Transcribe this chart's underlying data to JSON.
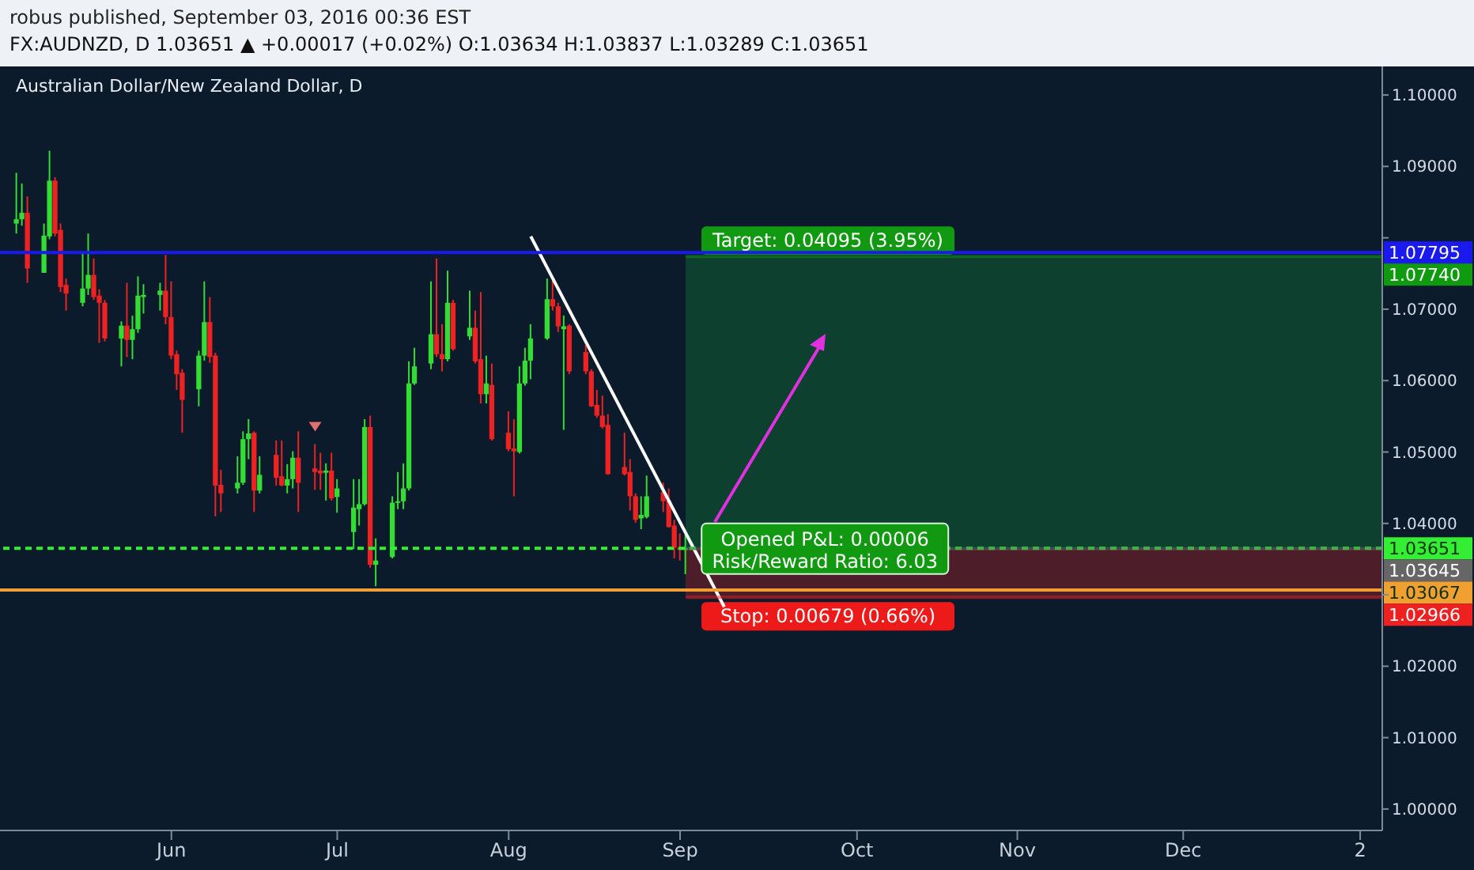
{
  "chart_data": {
    "type": "candlestick",
    "title": "Australian Dollar/New Zealand Dollar, D",
    "subtitle": "FX:AUDNZD, D 1.03651 ▲ +0.00017 (+0.02%) O:1.03634 H:1.03837 L:1.03289 C:1.03651",
    "annotations": [
      "robus published, September 03, 2016 00:36 EST",
      "Opened P&L: 0.00006",
      "Risk/Reward Ratio: 6.03"
    ],
    "x": [
      "2016-05-04",
      "2016-05-05",
      "2016-05-06",
      "2016-05-09",
      "2016-05-10",
      "2016-05-11",
      "2016-05-12",
      "2016-05-13",
      "2016-05-16",
      "2016-05-17",
      "2016-05-18",
      "2016-05-19",
      "2016-05-20",
      "2016-05-23",
      "2016-05-24",
      "2016-05-25",
      "2016-05-26",
      "2016-05-27",
      "2016-05-30",
      "2016-05-31",
      "2016-06-01",
      "2016-06-02",
      "2016-06-03",
      "2016-06-06",
      "2016-06-07",
      "2016-06-08",
      "2016-06-09",
      "2016-06-10",
      "2016-06-13",
      "2016-06-14",
      "2016-06-15",
      "2016-06-16",
      "2016-06-17",
      "2016-06-20",
      "2016-06-21",
      "2016-06-22",
      "2016-06-23",
      "2016-06-24",
      "2016-06-27",
      "2016-06-28",
      "2016-06-29",
      "2016-06-30",
      "2016-07-01",
      "2016-07-04",
      "2016-07-05",
      "2016-07-06",
      "2016-07-07",
      "2016-07-08",
      "2016-07-11",
      "2016-07-12",
      "2016-07-13",
      "2016-07-14",
      "2016-07-15",
      "2016-07-18",
      "2016-07-19",
      "2016-07-20",
      "2016-07-21",
      "2016-07-22",
      "2016-07-25",
      "2016-07-26",
      "2016-07-27",
      "2016-07-28",
      "2016-07-29",
      "2016-08-01",
      "2016-08-02",
      "2016-08-03",
      "2016-08-04",
      "2016-08-05",
      "2016-08-08",
      "2016-08-09",
      "2016-08-10",
      "2016-08-11",
      "2016-08-12",
      "2016-08-15",
      "2016-08-16",
      "2016-08-17",
      "2016-08-18",
      "2016-08-19",
      "2016-08-22",
      "2016-08-23",
      "2016-08-24",
      "2016-08-25",
      "2016-08-26",
      "2016-08-29",
      "2016-08-30",
      "2016-08-31",
      "2016-09-01",
      "2016-09-02"
    ],
    "ohlc": [
      [
        1.082,
        1.0891,
        1.0806,
        1.0826
      ],
      [
        1.0826,
        1.0876,
        1.0817,
        1.0835
      ],
      [
        1.0835,
        1.0858,
        1.0737,
        1.0757
      ],
      [
        1.0751,
        1.082,
        1.0751,
        1.0803
      ],
      [
        1.0802,
        1.0922,
        1.0798,
        1.088
      ],
      [
        1.088,
        1.0885,
        1.0802,
        1.0806
      ],
      [
        1.0811,
        1.082,
        1.0724,
        1.0731
      ],
      [
        1.0734,
        1.0743,
        1.0698,
        1.0722
      ],
      [
        1.0709,
        1.0778,
        1.0704,
        1.0729
      ],
      [
        1.0729,
        1.0806,
        1.072,
        1.0748
      ],
      [
        1.0748,
        1.0771,
        1.0713,
        1.0717
      ],
      [
        1.0719,
        1.0728,
        1.0653,
        1.0709
      ],
      [
        1.0709,
        1.0713,
        1.0655,
        1.0659
      ],
      [
        1.0659,
        1.0683,
        1.062,
        1.0677
      ],
      [
        1.0677,
        1.0737,
        1.0633,
        1.0657
      ],
      [
        1.0657,
        1.0691,
        1.063,
        1.0672
      ],
      [
        1.0672,
        1.0746,
        1.0667,
        1.0719
      ],
      [
        1.0717,
        1.0735,
        1.0694,
        1.072
      ],
      [
        1.072,
        1.0737,
        1.0698,
        1.0726
      ],
      [
        1.0726,
        1.0776,
        1.0679,
        1.0689
      ],
      [
        1.0689,
        1.0739,
        1.063,
        1.0635
      ],
      [
        1.0637,
        1.0642,
        1.0587,
        1.0609
      ],
      [
        1.0611,
        1.0616,
        1.0527,
        1.0573
      ],
      [
        1.0588,
        1.0642,
        1.0564,
        1.0635
      ],
      [
        1.0635,
        1.0739,
        1.0628,
        1.0682
      ],
      [
        1.0682,
        1.0717,
        1.0625,
        1.0633
      ],
      [
        1.0635,
        1.0639,
        1.041,
        1.0453
      ],
      [
        1.0454,
        1.0475,
        1.0416,
        1.0442
      ],
      [
        1.0449,
        1.0494,
        1.0442,
        1.0457
      ],
      [
        1.0457,
        1.0529,
        1.0454,
        1.0518
      ],
      [
        1.0518,
        1.0546,
        1.049,
        1.0526
      ],
      [
        1.0527,
        1.0529,
        1.0416,
        1.0446
      ],
      [
        1.0446,
        1.0494,
        1.0442,
        1.0468
      ],
      [
        1.0496,
        1.0516,
        1.0453,
        1.0464
      ],
      [
        1.0466,
        1.0516,
        1.0452,
        1.0453
      ],
      [
        1.0453,
        1.0483,
        1.0442,
        1.0462
      ],
      [
        1.0462,
        1.0501,
        1.0449,
        1.0492
      ],
      [
        1.0492,
        1.0529,
        1.0416,
        1.0457
      ],
      [
        1.0477,
        1.0511,
        1.0447,
        1.0472
      ],
      [
        1.0474,
        1.0499,
        1.0447,
        1.047
      ],
      [
        1.0471,
        1.0484,
        1.0432,
        1.0474
      ],
      [
        1.0474,
        1.0499,
        1.0432,
        1.0435
      ],
      [
        1.0437,
        1.0462,
        1.0415,
        1.0449
      ],
      [
        1.0388,
        1.0462,
        1.0364,
        1.0422
      ],
      [
        1.042,
        1.0462,
        1.0397,
        1.0427
      ],
      [
        1.0427,
        1.0546,
        1.0425,
        1.0535
      ],
      [
        1.0535,
        1.0551,
        1.0338,
        1.0342
      ],
      [
        1.0342,
        1.0379,
        1.0312,
        1.0348
      ],
      [
        1.0353,
        1.0438,
        1.0351,
        1.0429
      ],
      [
        1.0429,
        1.0472,
        1.042,
        1.0431
      ],
      [
        1.0431,
        1.0484,
        1.042,
        1.0449
      ],
      [
        1.0449,
        1.0627,
        1.0446,
        1.0596
      ],
      [
        1.0596,
        1.0646,
        1.0594,
        1.062
      ],
      [
        1.0624,
        1.0739,
        1.0616,
        1.0665
      ],
      [
        1.0665,
        1.0771,
        1.0633,
        1.0637
      ],
      [
        1.0637,
        1.0679,
        1.0613,
        1.063
      ],
      [
        1.063,
        1.0754,
        1.0627,
        1.0709
      ],
      [
        1.0709,
        1.0713,
        1.0642,
        1.0644
      ],
      [
        1.0662,
        1.0726,
        1.0657,
        1.0674
      ],
      [
        1.0674,
        1.0698,
        1.0624,
        1.0627
      ],
      [
        1.063,
        1.0724,
        1.0568,
        1.0581
      ],
      [
        1.0581,
        1.0635,
        1.0568,
        1.0596
      ],
      [
        1.0594,
        1.0624,
        1.0516,
        1.0518
      ],
      [
        1.0527,
        1.0557,
        1.0501,
        1.0504
      ],
      [
        1.0505,
        1.0546,
        1.0438,
        1.0501
      ],
      [
        1.05,
        1.062,
        1.0498,
        1.0596
      ],
      [
        1.0596,
        1.0646,
        1.0593,
        1.0628
      ],
      [
        1.0628,
        1.0679,
        1.0602,
        1.0659
      ],
      [
        1.0659,
        1.0743,
        1.0657,
        1.0714
      ],
      [
        1.0714,
        1.0743,
        1.0698,
        1.0704
      ],
      [
        1.0704,
        1.0709,
        1.0668,
        1.0676
      ],
      [
        1.0672,
        1.0691,
        1.0531,
        1.0676
      ],
      [
        1.0677,
        1.0679,
        1.0609,
        1.0613
      ],
      [
        1.064,
        1.065,
        1.0609,
        1.0613
      ],
      [
        1.0613,
        1.0616,
        1.0563,
        1.0564
      ],
      [
        1.0566,
        1.0587,
        1.0548,
        1.0551
      ],
      [
        1.0551,
        1.0579,
        1.0533,
        1.0535
      ],
      [
        1.0538,
        1.0553,
        1.0468,
        1.0469
      ],
      [
        1.0479,
        1.0527,
        1.0467,
        1.0469
      ],
      [
        1.0472,
        1.049,
        1.0418,
        1.0438
      ],
      [
        1.0438,
        1.0442,
        1.0401,
        1.0405
      ],
      [
        1.0407,
        1.0438,
        1.0392,
        1.0412
      ],
      [
        1.0409,
        1.0467,
        1.0407,
        1.0438
      ],
      [
        1.0444,
        1.0457,
        1.0416,
        1.0431
      ],
      [
        1.0432,
        1.0449,
        1.0394,
        1.0395
      ],
      [
        1.0397,
        1.0405,
        1.0351,
        1.0366
      ],
      [
        1.0366,
        1.0386,
        1.0348,
        1.0363
      ],
      [
        1.03634,
        1.03837,
        1.03289,
        1.03651
      ]
    ],
    "colors": [
      "#33dd33",
      "#33dd33",
      "#ee2222",
      "#33dd33",
      "#33dd33",
      "#ee2222",
      "#ee2222",
      "#ee2222",
      "#33dd33",
      "#33dd33",
      "#ee2222",
      "#ee2222",
      "#ee2222",
      "#33dd33",
      "#ee2222",
      "#33dd33",
      "#33dd33",
      "#33dd33",
      "#33dd33",
      "#ee2222",
      "#ee2222",
      "#ee2222",
      "#ee2222",
      "#33dd33",
      "#33dd33",
      "#ee2222",
      "#ee2222",
      "#ee2222",
      "#33dd33",
      "#33dd33",
      "#33dd33",
      "#ee2222",
      "#33dd33",
      "#ee2222",
      "#ee2222",
      "#33dd33",
      "#33dd33",
      "#ee2222",
      "#ee2222",
      "#ee2222",
      "#33dd33",
      "#ee2222",
      "#33dd33",
      "#33dd33",
      "#33dd33",
      "#33dd33",
      "#ee2222",
      "#33dd33",
      "#33dd33",
      "#33dd33",
      "#33dd33",
      "#33dd33",
      "#33dd33",
      "#33dd33",
      "#ee2222",
      "#ee2222",
      "#33dd33",
      "#ee2222",
      "#33dd33",
      "#ee2222",
      "#ee2222",
      "#33dd33",
      "#ee2222",
      "#ee2222",
      "#ee2222",
      "#33dd33",
      "#33dd33",
      "#33dd33",
      "#33dd33",
      "#ee2222",
      "#ee2222",
      "#33dd33",
      "#ee2222",
      "#ee2222",
      "#ee2222",
      "#ee2222",
      "#ee2222",
      "#ee2222",
      "#ee2222",
      "#ee2222",
      "#ee2222",
      "#33dd33",
      "#33dd33",
      "#ee2222",
      "#ee2222",
      "#ee2222",
      "#ee2222",
      "#33dd33"
    ],
    "series": [
      {
        "type": "line",
        "color": "#ffffff",
        "x": [
          "2016-08-05",
          "2016-09-09"
        ],
        "values": [
          1.0802,
          1.0283
        ]
      }
    ],
    "xlim": [
      "2016-05-01",
      "2017-01-06"
    ],
    "xticks": [
      {
        "value": "2016-06-01",
        "label": "Jun"
      },
      {
        "value": "2016-07-01",
        "label": "Jul"
      },
      {
        "value": "2016-08-01",
        "label": "Aug"
      },
      {
        "value": "2016-09-01",
        "label": "Sep"
      },
      {
        "value": "2016-10-03",
        "label": "Oct"
      },
      {
        "value": "2016-11-01",
        "label": "Nov"
      },
      {
        "value": "2016-12-01",
        "label": "Dec"
      },
      {
        "value": "2017-01-02",
        "label": "2"
      }
    ],
    "ylim": [
      0.997,
      1.104
    ],
    "yticks": [
      {
        "value": 1.0,
        "label": "1.00000"
      },
      {
        "value": 1.01,
        "label": "1.01000"
      },
      {
        "value": 1.02,
        "label": "1.02000"
      },
      {
        "value": 1.03,
        "label": null
      },
      {
        "value": 1.04,
        "label": "1.04000"
      },
      {
        "value": 1.05,
        "label": "1.05000"
      },
      {
        "value": 1.06,
        "label": "1.06000"
      },
      {
        "value": 1.07,
        "label": "1.07000"
      },
      {
        "value": 1.08,
        "label": null
      },
      {
        "value": 1.09,
        "label": "1.09000"
      },
      {
        "value": 1.1,
        "label": "1.10000"
      }
    ],
    "ref_lines": [
      {
        "axis": "y",
        "value": 1.07795,
        "label": "1.07795",
        "color": "#1a1aee",
        "line_style": "solid"
      },
      {
        "axis": "y",
        "value": 1.0774,
        "label": "1.07740",
        "color": "#109a10",
        "line_style": "solid"
      },
      {
        "axis": "y",
        "value": 1.03651,
        "label": "1.03651",
        "color": "#33ee33",
        "line_style": "dashed"
      },
      {
        "axis": "y",
        "value": 1.03645,
        "label": "1.03645",
        "color": "#666666",
        "line_style": "solid"
      },
      {
        "axis": "y",
        "value": 1.03067,
        "label": "1.03067",
        "color": "#f0a030",
        "line_style": "solid"
      },
      {
        "axis": "y",
        "value": 1.02966,
        "label": "1.02966",
        "color": "#ee2020",
        "line_style": "solid"
      }
    ],
    "bands": [
      {
        "axis": "y",
        "from": 1.03645,
        "to": 1.0774,
        "label": "Target: 0.04095 (3.95%)",
        "color": "#0f5a30"
      },
      {
        "axis": "y",
        "from": 1.02966,
        "to": 1.03645,
        "label": "Stop: 0.00679 (0.66%)",
        "color": "#7a1f2a"
      }
    ]
  }
}
